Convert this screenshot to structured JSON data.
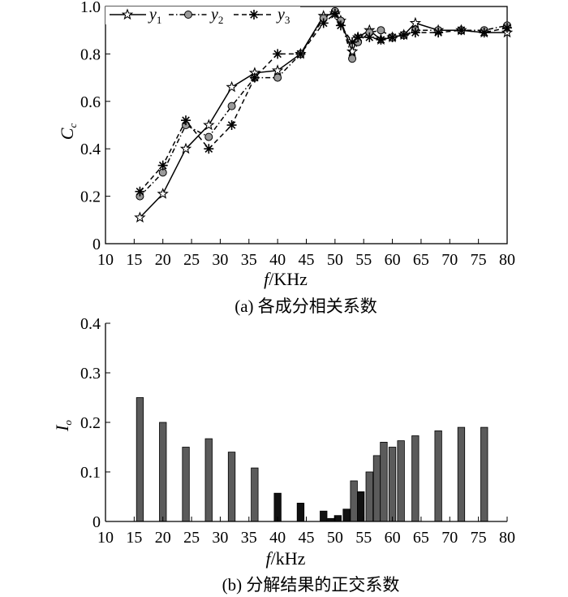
{
  "chart_data": [
    {
      "type": "line",
      "caption": "(a) 各成分相关系数",
      "xlabel_italic": "f",
      "xlabel_rest": "/KHz",
      "ylabel_main": "C",
      "ylabel_sub": "c",
      "xlim": [
        10,
        80
      ],
      "ylim": [
        0,
        1.0
      ],
      "xticks": [
        10,
        15,
        20,
        25,
        30,
        35,
        40,
        45,
        50,
        55,
        60,
        65,
        70,
        75,
        80
      ],
      "xtick_labels": [
        "10",
        "15",
        "20",
        "25",
        "30",
        "35",
        "40",
        "45",
        "50",
        "55",
        "60",
        "65",
        "70",
        "75",
        "80"
      ],
      "yticks": [
        0,
        0.2,
        0.4,
        0.6,
        0.8,
        1.0
      ],
      "ytick_labels": [
        "0",
        "0.2",
        "0.4",
        "0.6",
        "0.8",
        "1.0"
      ],
      "grid": false,
      "legend_position": "top",
      "series": [
        {
          "name": "y",
          "name_sub": "1",
          "line_style": "solid",
          "marker": "star",
          "x": [
            16,
            20,
            24,
            28,
            32,
            36,
            40,
            44,
            48,
            50,
            51,
            53,
            54,
            56,
            58,
            60,
            62,
            64,
            68,
            72,
            76,
            80
          ],
          "y": [
            0.11,
            0.21,
            0.4,
            0.5,
            0.66,
            0.72,
            0.73,
            0.8,
            0.96,
            0.97,
            0.94,
            0.81,
            0.87,
            0.9,
            0.86,
            0.87,
            0.88,
            0.93,
            0.9,
            0.9,
            0.89,
            0.89
          ]
        },
        {
          "name": "y",
          "name_sub": "2",
          "line_style": "dashdot",
          "marker": "circle",
          "x": [
            16,
            20,
            24,
            28,
            32,
            36,
            40,
            44,
            48,
            50,
            51,
            53,
            54,
            56,
            58,
            60,
            62,
            64,
            68,
            72,
            76,
            80
          ],
          "y": [
            0.2,
            0.3,
            0.5,
            0.45,
            0.58,
            0.7,
            0.7,
            0.8,
            0.95,
            0.98,
            0.94,
            0.78,
            0.85,
            0.89,
            0.9,
            0.87,
            0.88,
            0.9,
            0.9,
            0.9,
            0.9,
            0.92
          ]
        },
        {
          "name": "y",
          "name_sub": "3",
          "line_style": "dashed",
          "marker": "asterisk",
          "x": [
            16,
            20,
            24,
            28,
            32,
            36,
            40,
            44,
            48,
            50,
            51,
            53,
            54,
            56,
            58,
            60,
            62,
            64,
            68,
            72,
            76,
            80
          ],
          "y": [
            0.22,
            0.33,
            0.52,
            0.4,
            0.5,
            0.7,
            0.8,
            0.8,
            0.93,
            0.97,
            0.92,
            0.85,
            0.87,
            0.87,
            0.86,
            0.87,
            0.88,
            0.89,
            0.89,
            0.9,
            0.89,
            0.91
          ]
        }
      ]
    },
    {
      "type": "bar",
      "caption": "(b) 分解结果的正交系数",
      "xlabel_italic": "f",
      "xlabel_rest": "/kHz",
      "ylabel_main": "I",
      "ylabel_sub": "o",
      "xlim": [
        10,
        80
      ],
      "ylim": [
        0,
        0.4
      ],
      "xticks": [
        10,
        15,
        20,
        25,
        30,
        35,
        40,
        45,
        50,
        55,
        60,
        65,
        70,
        75,
        80
      ],
      "xtick_labels": [
        "10",
        "15",
        "20",
        "25",
        "30",
        "35",
        "40",
        "45",
        "50",
        "55",
        "60",
        "65",
        "70",
        "75",
        "80"
      ],
      "yticks": [
        0,
        0.1,
        0.2,
        0.3,
        0.4
      ],
      "ytick_labels": [
        "0",
        "0.1",
        "0.2",
        "0.3",
        "0.4"
      ],
      "grid": false,
      "colors": {
        "gray": "#5b5b5b",
        "black": "#111111"
      },
      "bars": [
        {
          "x": 16,
          "value": 0.25,
          "color": "gray"
        },
        {
          "x": 20,
          "value": 0.2,
          "color": "gray"
        },
        {
          "x": 24,
          "value": 0.15,
          "color": "gray"
        },
        {
          "x": 28,
          "value": 0.167,
          "color": "gray"
        },
        {
          "x": 32,
          "value": 0.14,
          "color": "gray"
        },
        {
          "x": 36,
          "value": 0.108,
          "color": "gray"
        },
        {
          "x": 40,
          "value": 0.057,
          "color": "black"
        },
        {
          "x": 44,
          "value": 0.037,
          "color": "black"
        },
        {
          "x": 48,
          "value": 0.021,
          "color": "black"
        },
        {
          "x": 49.3,
          "value": 0.006,
          "color": "black"
        },
        {
          "x": 50.5,
          "value": 0.012,
          "color": "black"
        },
        {
          "x": 52,
          "value": 0.025,
          "color": "black"
        },
        {
          "x": 53.3,
          "value": 0.082,
          "color": "gray"
        },
        {
          "x": 54.5,
          "value": 0.06,
          "color": "black"
        },
        {
          "x": 56,
          "value": 0.1,
          "color": "gray"
        },
        {
          "x": 57.3,
          "value": 0.133,
          "color": "gray"
        },
        {
          "x": 58.5,
          "value": 0.16,
          "color": "gray"
        },
        {
          "x": 60,
          "value": 0.15,
          "color": "gray"
        },
        {
          "x": 61.5,
          "value": 0.163,
          "color": "gray"
        },
        {
          "x": 64,
          "value": 0.173,
          "color": "gray"
        },
        {
          "x": 68,
          "value": 0.183,
          "color": "gray"
        },
        {
          "x": 72,
          "value": 0.19,
          "color": "gray"
        },
        {
          "x": 76,
          "value": 0.19,
          "color": "gray"
        }
      ]
    }
  ]
}
